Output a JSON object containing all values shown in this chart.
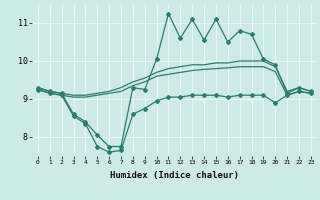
{
  "xlabel": "Humidex (Indice chaleur)",
  "x_values": [
    0,
    1,
    2,
    3,
    4,
    5,
    6,
    7,
    8,
    9,
    10,
    11,
    12,
    13,
    14,
    15,
    16,
    17,
    18,
    19,
    20,
    21,
    22,
    23
  ],
  "line_max": [
    9.3,
    9.2,
    9.15,
    8.6,
    8.4,
    8.05,
    7.75,
    7.75,
    9.3,
    9.25,
    10.05,
    11.25,
    10.6,
    11.1,
    10.55,
    11.1,
    10.5,
    10.8,
    10.7,
    10.05,
    9.9,
    9.15,
    9.3,
    9.2
  ],
  "line_avg_upper": [
    9.3,
    9.2,
    9.15,
    9.1,
    9.1,
    9.15,
    9.2,
    9.3,
    9.45,
    9.55,
    9.7,
    9.8,
    9.85,
    9.9,
    9.9,
    9.95,
    9.95,
    10.0,
    10.0,
    10.0,
    9.85,
    9.2,
    9.3,
    9.2
  ],
  "line_avg_lower": [
    9.25,
    9.15,
    9.1,
    9.05,
    9.05,
    9.1,
    9.15,
    9.2,
    9.35,
    9.45,
    9.6,
    9.65,
    9.7,
    9.75,
    9.78,
    9.8,
    9.82,
    9.85,
    9.85,
    9.85,
    9.72,
    9.1,
    9.2,
    9.15
  ],
  "line_min": [
    9.25,
    9.15,
    9.1,
    8.55,
    8.35,
    7.75,
    7.6,
    7.65,
    8.6,
    8.75,
    8.95,
    9.05,
    9.05,
    9.1,
    9.1,
    9.1,
    9.05,
    9.1,
    9.1,
    9.1,
    8.9,
    9.1,
    9.2,
    9.15
  ],
  "line_color": "#2a7d6e",
  "bg_color": "#ceeae8",
  "grid_color": "#e8f8f7",
  "ylim": [
    7.5,
    11.5
  ],
  "yticks": [
    8,
    9,
    10,
    11
  ],
  "xticks": [
    0,
    1,
    2,
    3,
    4,
    5,
    6,
    7,
    8,
    9,
    10,
    11,
    12,
    13,
    14,
    15,
    16,
    17,
    18,
    19,
    20,
    21,
    22,
    23
  ]
}
